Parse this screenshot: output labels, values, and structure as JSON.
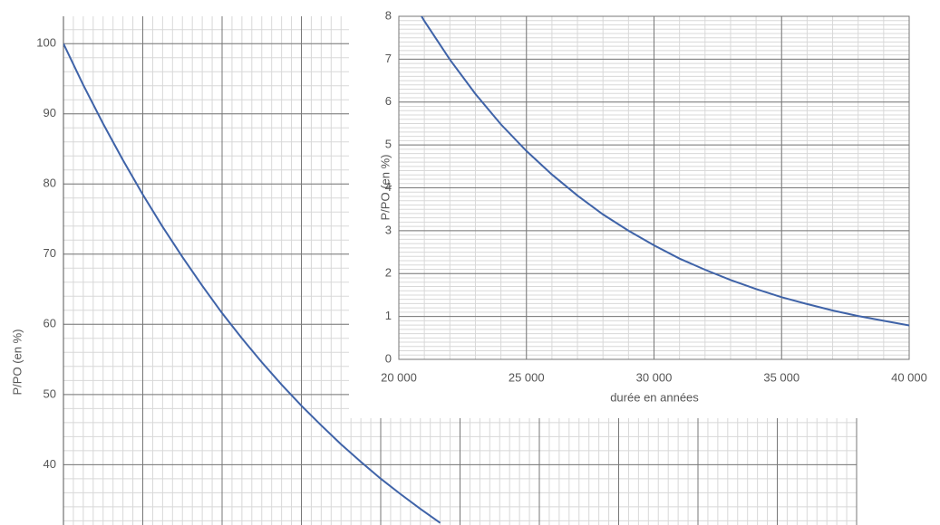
{
  "chart_data": [
    {
      "type": "line",
      "ylabel": "P/PO (en %)",
      "color": "#3f63a8",
      "x": [
        0,
        500,
        1000,
        1500,
        2000,
        2500,
        3000,
        3500,
        4000,
        4500,
        5000,
        5500,
        6000,
        6500,
        7000,
        7500,
        8000,
        8500,
        9000,
        9500
      ],
      "values": [
        100,
        94.1,
        88.6,
        83.4,
        78.5,
        73.9,
        69.6,
        65.5,
        61.6,
        58.0,
        54.6,
        51.4,
        48.4,
        45.6,
        42.9,
        40.4,
        38.0,
        35.8,
        33.7,
        31.7
      ],
      "xlim": [
        0,
        20000
      ],
      "xticks": [
        0,
        2000,
        4000,
        6000,
        8000,
        10000,
        12000,
        14000,
        16000,
        18000,
        20000
      ],
      "xtick_labels": false,
      "ylim": [
        31.4,
        103.9
      ],
      "yticks": [
        40,
        50,
        60,
        70,
        80,
        90,
        100
      ],
      "grid": true
    },
    {
      "type": "line",
      "xlabel": "durée en années",
      "ylabel": "P/PO (en %)",
      "color": "#3f63a8",
      "x": [
        20000,
        21000,
        22000,
        23000,
        24000,
        25000,
        26000,
        27000,
        28000,
        29000,
        30000,
        31000,
        32000,
        33000,
        34000,
        35000,
        36000,
        37000,
        38000,
        39000,
        40000
      ],
      "values": [
        8.89,
        7.89,
        6.99,
        6.19,
        5.48,
        4.86,
        4.31,
        3.82,
        3.38,
        3.0,
        2.66,
        2.35,
        2.09,
        1.85,
        1.64,
        1.45,
        1.29,
        1.14,
        1.01,
        0.9,
        0.79
      ],
      "xlim": [
        20000,
        40000
      ],
      "xticks": [
        {
          "value": 20000,
          "label": "20 000"
        },
        {
          "value": 25000,
          "label": "25 000"
        },
        {
          "value": 30000,
          "label": "30 000"
        },
        {
          "value": 35000,
          "label": "35 000"
        },
        {
          "value": 40000,
          "label": "40 000"
        }
      ],
      "xtick_labels": true,
      "ylim": [
        0,
        8
      ],
      "yticks": [
        0,
        1,
        2,
        3,
        4,
        5,
        6,
        7,
        8
      ],
      "grid": true
    }
  ]
}
